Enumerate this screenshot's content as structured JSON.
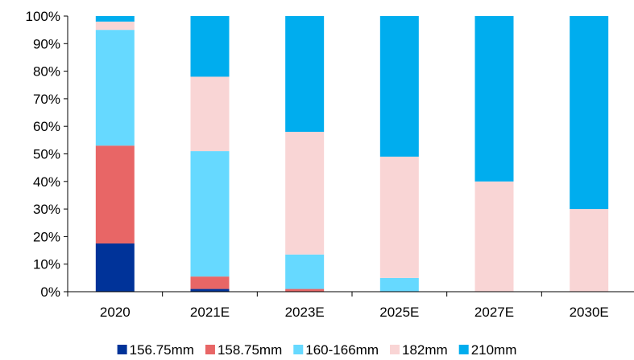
{
  "chart_data": {
    "type": "bar",
    "stacked": true,
    "categories": [
      "2020",
      "2021E",
      "2023E",
      "2025E",
      "2027E",
      "2030E"
    ],
    "ylim": [
      0,
      100
    ],
    "ytick_values": [
      0,
      10,
      20,
      30,
      40,
      50,
      60,
      70,
      80,
      90,
      100
    ],
    "ytick_labels": [
      "0%",
      "10%",
      "20%",
      "30%",
      "40%",
      "50%",
      "60%",
      "70%",
      "80%",
      "90%",
      "100%"
    ],
    "grid": false,
    "legend_position": "bottom",
    "series": [
      {
        "name": "156.75mm",
        "color": "#003399",
        "values": [
          17.5,
          1,
          0,
          0,
          0,
          0
        ]
      },
      {
        "name": "158.75mm",
        "color": "#E86666",
        "values": [
          35.5,
          4.5,
          1,
          0,
          0,
          0
        ]
      },
      {
        "name": "160-166mm",
        "color": "#66D9FF",
        "values": [
          42,
          45.5,
          12.5,
          5,
          0,
          0
        ]
      },
      {
        "name": "182mm",
        "color": "#F9D5D5",
        "values": [
          3,
          27,
          44.5,
          44,
          40,
          30
        ]
      },
      {
        "name": "210mm",
        "color": "#00ADEE",
        "values": [
          2,
          22,
          42,
          51,
          60,
          70
        ]
      }
    ]
  }
}
